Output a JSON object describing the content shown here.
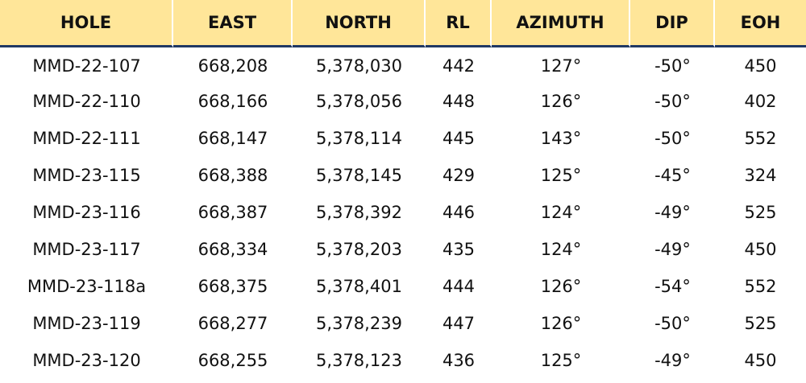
{
  "table": {
    "headers": [
      "HOLE",
      "EAST",
      "NORTH",
      "RL",
      "AZIMUTH",
      "DIP",
      "EOH"
    ],
    "rows": [
      [
        "MMD-22-107",
        "668,208",
        "5,378,030",
        "442",
        "127°",
        "-50°",
        "450"
      ],
      [
        "MMD-22-110",
        "668,166",
        "5,378,056",
        "448",
        "126°",
        "-50°",
        "402"
      ],
      [
        "MMD-22-111",
        "668,147",
        "5,378,114",
        "445",
        "143°",
        "-50°",
        "552"
      ],
      [
        "MMD-23-115",
        "668,388",
        "5,378,145",
        "429",
        "125°",
        "-45°",
        "324"
      ],
      [
        "MMD-23-116",
        "668,387",
        "5,378,392",
        "446",
        "124°",
        "-49°",
        "525"
      ],
      [
        "MMD-23-117",
        "668,334",
        "5,378,203",
        "435",
        "124°",
        "-49°",
        "450"
      ],
      [
        "MMD-23-118a",
        "668,375",
        "5,378,401",
        "444",
        "126°",
        "-54°",
        "552"
      ],
      [
        "MMD-23-119",
        "668,277",
        "5,378,239",
        "447",
        "126°",
        "-50°",
        "525"
      ],
      [
        "MMD-23-120",
        "668,255",
        "5,378,123",
        "436",
        "125°",
        "-49°",
        "450"
      ]
    ]
  },
  "colors": {
    "header_bg": "#ffe699",
    "header_rule": "#1f3864"
  }
}
